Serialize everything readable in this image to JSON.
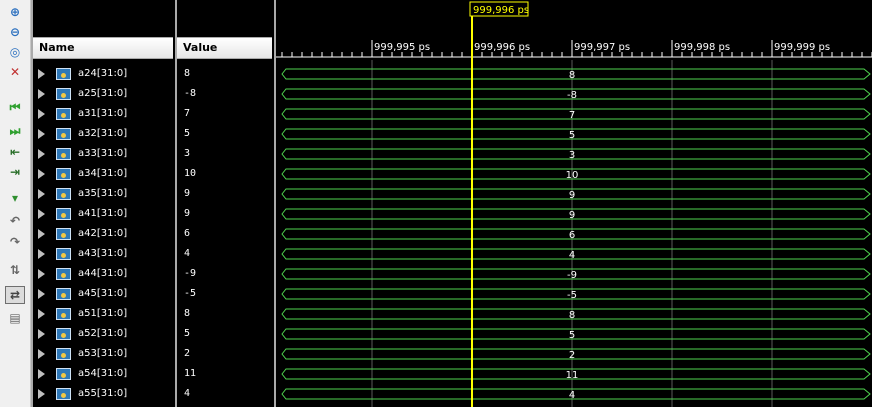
{
  "toolbar": {
    "icons": [
      "zoom-in-icon",
      "zoom-out-icon",
      "zoom-fit-icon",
      "zoom-full-icon",
      "go-to-start-icon",
      "go-to-end-icon",
      "previous-transition-icon",
      "next-transition-icon",
      "add-marker-icon",
      "previous-marker-icon",
      "next-marker-icon",
      "swap-cursors-icon",
      "snap-to-transition-icon",
      "floating-ruler-icon"
    ]
  },
  "columns": {
    "name": "Name",
    "value": "Value"
  },
  "cursor": {
    "label": "999,996 ps",
    "color": "#ffff00"
  },
  "timeline": {
    "labels": [
      "999,995 ps",
      "999,996 ps",
      "999,997 ps",
      "999,998 ps",
      "999,999 ps"
    ]
  },
  "signals": [
    {
      "name": "a24[31:0]",
      "value": "8",
      "wave": "8"
    },
    {
      "name": "a25[31:0]",
      "value": "-8",
      "wave": "-8"
    },
    {
      "name": "a31[31:0]",
      "value": "7",
      "wave": "7"
    },
    {
      "name": "a32[31:0]",
      "value": "5",
      "wave": "5"
    },
    {
      "name": "a33[31:0]",
      "value": "3",
      "wave": "3"
    },
    {
      "name": "a34[31:0]",
      "value": "10",
      "wave": "10"
    },
    {
      "name": "a35[31:0]",
      "value": "9",
      "wave": "9"
    },
    {
      "name": "a41[31:0]",
      "value": "9",
      "wave": "9"
    },
    {
      "name": "a42[31:0]",
      "value": "6",
      "wave": "6"
    },
    {
      "name": "a43[31:0]",
      "value": "4",
      "wave": "4"
    },
    {
      "name": "a44[31:0]",
      "value": "-9",
      "wave": "-9"
    },
    {
      "name": "a45[31:0]",
      "value": "-5",
      "wave": "-5"
    },
    {
      "name": "a51[31:0]",
      "value": "8",
      "wave": "8"
    },
    {
      "name": "a52[31:0]",
      "value": "5",
      "wave": "5"
    },
    {
      "name": "a53[31:0]",
      "value": "2",
      "wave": "2"
    },
    {
      "name": "a54[31:0]",
      "value": "11",
      "wave": "11"
    },
    {
      "name": "a55[31:0]",
      "value": "4",
      "wave": "4"
    }
  ],
  "colors": {
    "wave": "#4fd44f",
    "grid": "#5a5a5a",
    "ruler": "#ffffff"
  }
}
